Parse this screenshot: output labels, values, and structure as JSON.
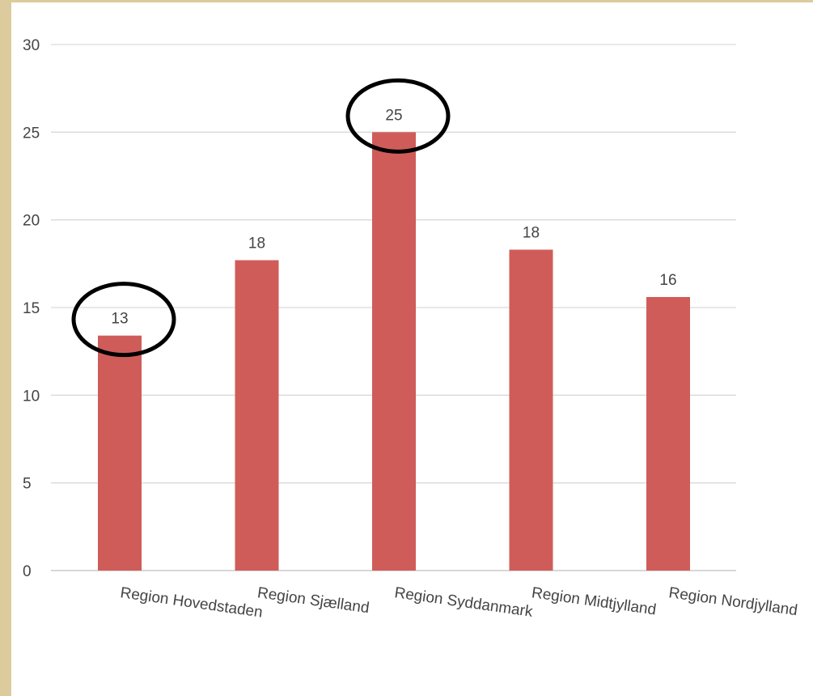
{
  "chart_data": {
    "type": "bar",
    "title": "",
    "xlabel": "",
    "ylabel": "",
    "categories": [
      "Region Hovedstaden",
      "Region Sjælland",
      "Region Syddanmark",
      "Region Midtjylland",
      "Region Nordjylland"
    ],
    "values": [
      13.4,
      17.7,
      25.0,
      18.3,
      15.6
    ],
    "data_labels": [
      "13",
      "18",
      "25",
      "18",
      "16"
    ],
    "ylim": [
      0,
      30
    ],
    "yticks": [
      "0",
      "5",
      "10",
      "15",
      "20",
      "25",
      "30"
    ],
    "grid": true,
    "legend": "none",
    "bar_color": "#d05c59",
    "highlighted_categories": [
      "Region Hovedstaden",
      "Region Syddanmark"
    ]
  },
  "colors": {
    "frame": "#dccb9c",
    "highlight_ring": "#000000"
  }
}
